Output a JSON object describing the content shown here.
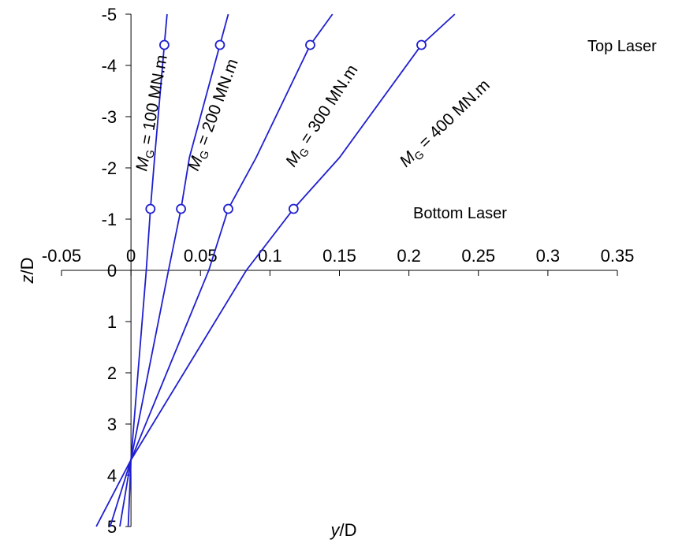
{
  "chart_data": {
    "type": "line",
    "xlabel": {
      "var": "y",
      "unit": "/D"
    },
    "ylabel": {
      "var": "z",
      "unit": "/D"
    },
    "xlim": [
      -0.05,
      0.35
    ],
    "ylim": [
      -5,
      5
    ],
    "y_inverted": true,
    "x_ticks": [
      "-0.05",
      "0",
      "0.05",
      "0.1",
      "0.15",
      "0.2",
      "0.25",
      "0.3",
      "0.35"
    ],
    "y_ticks": [
      "-5",
      "-4",
      "-3",
      "-2",
      "-1",
      "0",
      "1",
      "2",
      "3",
      "4",
      "5"
    ],
    "grid": false,
    "line_color": "#1f1fd0",
    "annotations": {
      "top": "Top Laser",
      "bottom": "Bottom Laser"
    },
    "series": [
      {
        "label_var": "M",
        "label_sub": "G",
        "label_rest": " = 100 MN.m",
        "points": [
          [
            -0.002,
            5.0
          ],
          [
            0.0,
            3.7
          ],
          [
            0.011,
            0.0
          ],
          [
            0.014,
            -1.2
          ],
          [
            0.017,
            -2.2
          ],
          [
            0.024,
            -4.4
          ],
          [
            0.026,
            -5.0
          ]
        ],
        "markers": [
          [
            0.014,
            -1.2
          ],
          [
            0.024,
            -4.4
          ]
        ]
      },
      {
        "label_var": "M",
        "label_sub": "G",
        "label_rest": " = 200 MN.m",
        "points": [
          [
            -0.008,
            5.0
          ],
          [
            0.0,
            3.7
          ],
          [
            0.027,
            0.0
          ],
          [
            0.036,
            -1.2
          ],
          [
            0.042,
            -2.2
          ],
          [
            0.064,
            -4.4
          ],
          [
            0.07,
            -5.0
          ]
        ],
        "markers": [
          [
            0.036,
            -1.2
          ],
          [
            0.064,
            -4.4
          ]
        ]
      },
      {
        "label_var": "M",
        "label_sub": "G",
        "label_rest": " = 300 MN.m",
        "points": [
          [
            -0.015,
            5.0
          ],
          [
            0.0,
            3.7
          ],
          [
            0.056,
            0.0
          ],
          [
            0.07,
            -1.2
          ],
          [
            0.09,
            -2.2
          ],
          [
            0.129,
            -4.4
          ],
          [
            0.145,
            -5.0
          ]
        ],
        "markers": [
          [
            0.07,
            -1.2
          ],
          [
            0.129,
            -4.4
          ]
        ]
      },
      {
        "label_var": "M",
        "label_sub": "G",
        "label_rest": " = 400 MN.m",
        "points": [
          [
            -0.025,
            5.0
          ],
          [
            0.0,
            3.7
          ],
          [
            0.083,
            0.0
          ],
          [
            0.117,
            -1.2
          ],
          [
            0.15,
            -2.2
          ],
          [
            0.209,
            -4.4
          ],
          [
            0.233,
            -5.0
          ]
        ],
        "markers": [
          [
            0.117,
            -1.2
          ],
          [
            0.209,
            -4.4
          ]
        ]
      }
    ]
  }
}
